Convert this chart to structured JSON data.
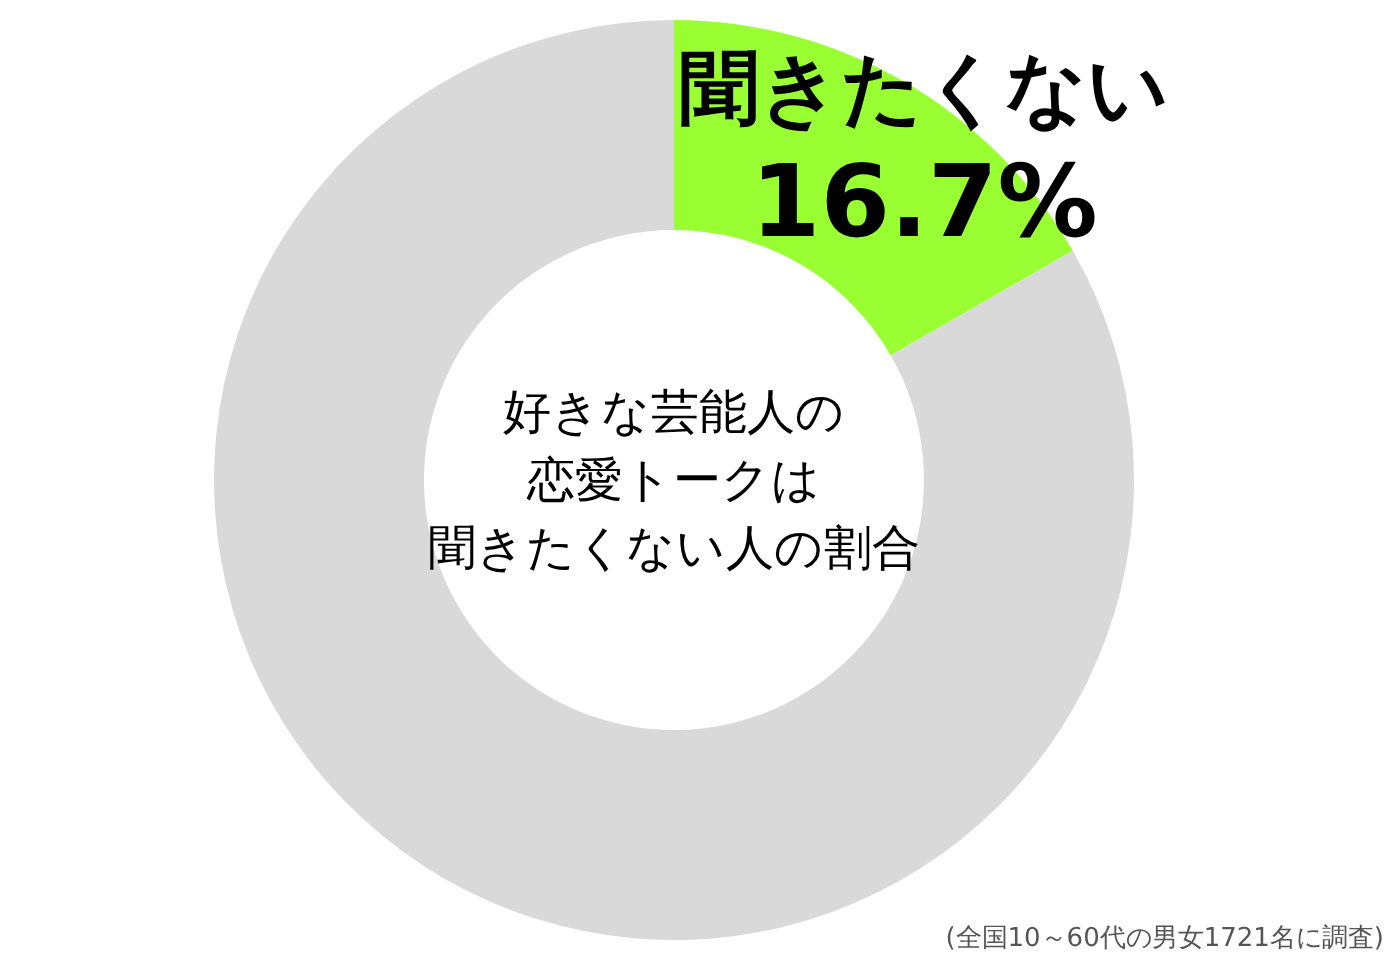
{
  "chart_data": {
    "type": "donut",
    "title": "好きな芸能人の恋愛トークは聞きたくない人の割合",
    "categories": [
      "聞きたくない",
      null
    ],
    "values": [
      16.7,
      83.3
    ],
    "colors": [
      "#99ff33",
      "#d9d9d9"
    ],
    "value_labels": [
      "16.7%",
      null
    ],
    "annotations": [
      "(全国10～60代の男女1721名に調査)"
    ]
  }
}
